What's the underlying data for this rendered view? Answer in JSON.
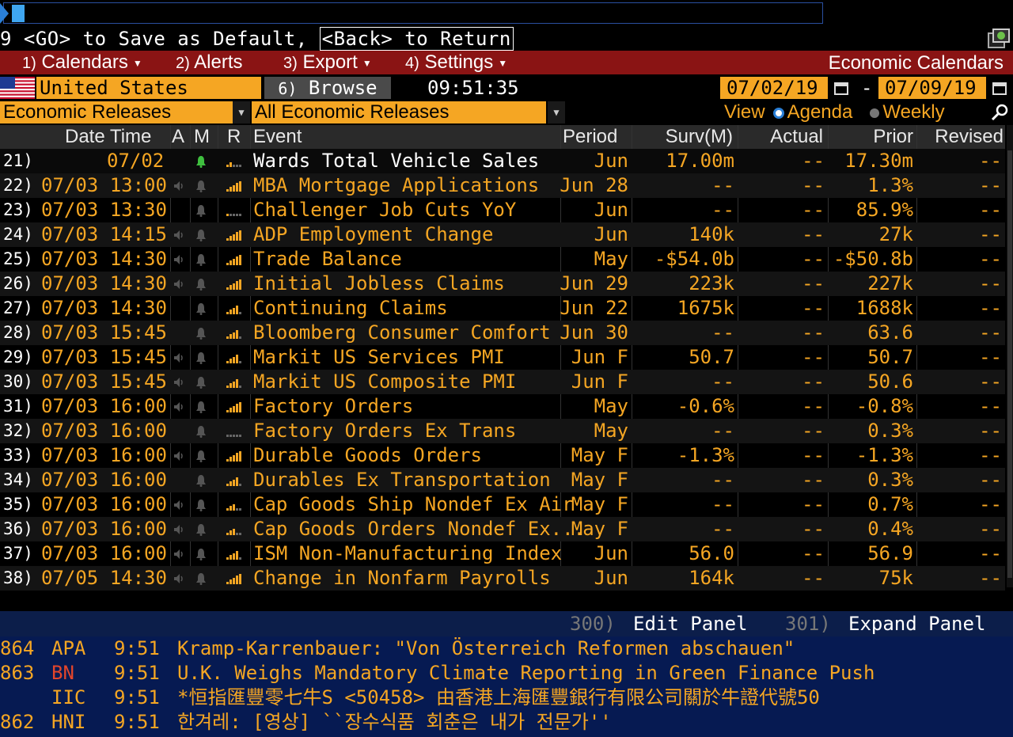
{
  "command": {
    "hint_prefix": "9 <GO> to Save as Default, ",
    "hint_back": "<Back> to Return"
  },
  "menu": {
    "items": [
      {
        "num": "1)",
        "label": "Calendars"
      },
      {
        "num": "2)",
        "label": "Alerts"
      },
      {
        "num": "3)",
        "label": "Export"
      },
      {
        "num": "4)",
        "label": "Settings"
      }
    ],
    "title": "Economic Calendars"
  },
  "filters": {
    "country": "United States",
    "browse_num": "6)",
    "browse_label": "Browse",
    "time": "09:51:35",
    "date_from": "07/02/19",
    "date_sep": "-",
    "date_to": "07/09/19",
    "category": "Economic Releases",
    "subcategory": "All Economic Releases",
    "view_label": "View",
    "view_agenda": "Agenda",
    "view_weekly": "Weekly"
  },
  "table": {
    "headers": {
      "datetime": "Date Time",
      "a": "A",
      "m": "M",
      "r": "R",
      "event": "Event",
      "period": "Period",
      "surv": "Surv(M)",
      "actual": "Actual",
      "prior": "Prior",
      "revised": "Revised"
    },
    "rows": [
      {
        "idx": "21)",
        "date": "07/02",
        "time": "",
        "alert": "bell-green",
        "rel": 2,
        "event": "Wards Total Vehicle Sales",
        "period": "Jun",
        "surv": "17.00m",
        "actual": "--",
        "prior": "17.30m",
        "revised": "--"
      },
      {
        "idx": "22)",
        "date": "07/03",
        "time": "13:00",
        "alert": "sound",
        "rel": 5,
        "event": "MBA Mortgage Applications",
        "period": "Jun 28",
        "surv": "--",
        "actual": "--",
        "prior": "1.3%",
        "revised": "--"
      },
      {
        "idx": "23)",
        "date": "07/03",
        "time": "13:30",
        "alert": "none",
        "rel": 1,
        "event": "Challenger Job Cuts YoY",
        "period": "Jun",
        "surv": "--",
        "actual": "--",
        "prior": "85.9%",
        "revised": "--"
      },
      {
        "idx": "24)",
        "date": "07/03",
        "time": "14:15",
        "alert": "sound",
        "rel": 5,
        "event": "ADP Employment Change",
        "period": "Jun",
        "surv": "140k",
        "actual": "--",
        "prior": "27k",
        "revised": "--"
      },
      {
        "idx": "25)",
        "date": "07/03",
        "time": "14:30",
        "alert": "sound",
        "rel": 5,
        "event": "Trade Balance",
        "period": "May",
        "surv": "-$54.0b",
        "actual": "--",
        "prior": "-$50.8b",
        "revised": "--"
      },
      {
        "idx": "26)",
        "date": "07/03",
        "time": "14:30",
        "alert": "sound",
        "rel": 5,
        "event": "Initial Jobless Claims",
        "period": "Jun 29",
        "surv": "223k",
        "actual": "--",
        "prior": "227k",
        "revised": "--"
      },
      {
        "idx": "27)",
        "date": "07/03",
        "time": "14:30",
        "alert": "none",
        "rel": 4,
        "event": "Continuing Claims",
        "period": "Jun 22",
        "surv": "1675k",
        "actual": "--",
        "prior": "1688k",
        "revised": "--"
      },
      {
        "idx": "28)",
        "date": "07/03",
        "time": "15:45",
        "alert": "none",
        "rel": 4,
        "event": "Bloomberg Consumer Comfort",
        "period": "Jun 30",
        "surv": "--",
        "actual": "--",
        "prior": "63.6",
        "revised": "--"
      },
      {
        "idx": "29)",
        "date": "07/03",
        "time": "15:45",
        "alert": "sound",
        "rel": 4,
        "event": "Markit US Services PMI",
        "period": "Jun F",
        "surv": "50.7",
        "actual": "--",
        "prior": "50.7",
        "revised": "--"
      },
      {
        "idx": "30)",
        "date": "07/03",
        "time": "15:45",
        "alert": "sound",
        "rel": 4,
        "event": "Markit US Composite PMI",
        "period": "Jun F",
        "surv": "--",
        "actual": "--",
        "prior": "50.6",
        "revised": "--"
      },
      {
        "idx": "31)",
        "date": "07/03",
        "time": "16:00",
        "alert": "sound",
        "rel": 5,
        "event": "Factory Orders",
        "period": "May",
        "surv": "-0.6%",
        "actual": "--",
        "prior": "-0.8%",
        "revised": "--"
      },
      {
        "idx": "32)",
        "date": "07/03",
        "time": "16:00",
        "alert": "none",
        "rel": 0,
        "event": "Factory Orders Ex Trans",
        "period": "May",
        "surv": "--",
        "actual": "--",
        "prior": "0.3%",
        "revised": "--"
      },
      {
        "idx": "33)",
        "date": "07/03",
        "time": "16:00",
        "alert": "sound",
        "rel": 5,
        "event": "Durable Goods Orders",
        "period": "May F",
        "surv": "-1.3%",
        "actual": "--",
        "prior": "-1.3%",
        "revised": "--"
      },
      {
        "idx": "34)",
        "date": "07/03",
        "time": "16:00",
        "alert": "none",
        "rel": 4,
        "event": "Durables Ex Transportation",
        "period": "May F",
        "surv": "--",
        "actual": "--",
        "prior": "0.3%",
        "revised": "--"
      },
      {
        "idx": "35)",
        "date": "07/03",
        "time": "16:00",
        "alert": "sound",
        "rel": 3,
        "event": "Cap Goods Ship Nondef Ex Air",
        "period": "May F",
        "surv": "--",
        "actual": "--",
        "prior": "0.7%",
        "revised": "--"
      },
      {
        "idx": "36)",
        "date": "07/03",
        "time": "16:00",
        "alert": "sound",
        "rel": 3,
        "event": "Cap Goods Orders Nondef Ex...",
        "period": "May F",
        "surv": "--",
        "actual": "--",
        "prior": "0.4%",
        "revised": "--"
      },
      {
        "idx": "37)",
        "date": "07/03",
        "time": "16:00",
        "alert": "sound",
        "rel": 4,
        "event": "ISM Non-Manufacturing Index",
        "period": "Jun",
        "surv": "56.0",
        "actual": "--",
        "prior": "56.9",
        "revised": "--"
      },
      {
        "idx": "38)",
        "date": "07/05",
        "time": "14:30",
        "alert": "sound-bell",
        "rel": 5,
        "event": "Change in Nonfarm Payrolls",
        "period": "Jun",
        "surv": "164k",
        "actual": "--",
        "prior": "75k",
        "revised": "--"
      }
    ]
  },
  "panel": {
    "edit_num": "300)",
    "edit_label": "Edit Panel",
    "expand_num": "301)",
    "expand_label": "Expand Panel"
  },
  "news": [
    {
      "num": "864",
      "src": "APA",
      "time": "9:51",
      "headline": "Kramp-Karrenbauer: \"Von Österreich Reformen abschauen\"",
      "src_color": "#f5a623"
    },
    {
      "num": "863",
      "src": "BN",
      "time": "9:51",
      "headline": "U.K. Weighs Mandatory Climate Reporting in Green Finance Push",
      "src_color": "#e2452b"
    },
    {
      "num": "",
      "src": "IIC",
      "time": "9:51",
      "headline": "*恒指匯豐零七牛S <50458>  由香港上海匯豐銀行有限公司關於牛證代號50",
      "src_color": "#f5a623"
    },
    {
      "num": "862",
      "src": "HNI",
      "time": "9:51",
      "headline": "한겨레: [영상] ``장수식품 회춘은 내가 전문가''",
      "src_color": "#f5a623"
    }
  ],
  "colors": {
    "accent": "#f5a623",
    "menubar": "#8a1414",
    "news_bg": "#061a52",
    "bar_active": "#f5a623",
    "bar_inactive": "#666666"
  }
}
